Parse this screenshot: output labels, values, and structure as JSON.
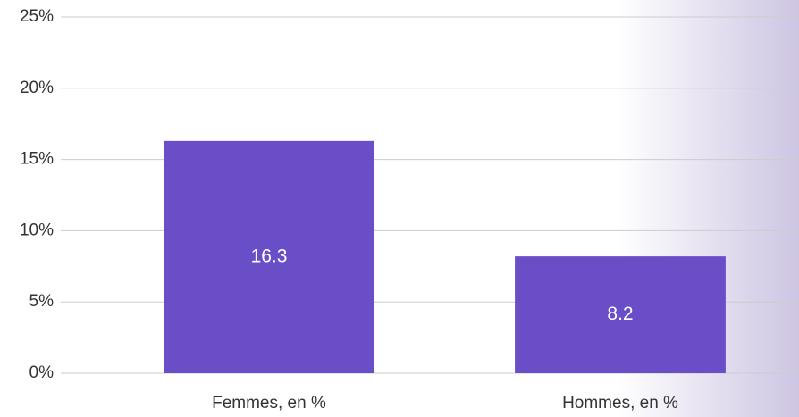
{
  "chart_data": {
    "type": "bar",
    "categories": [
      "Femmes, en %",
      "Hommes, en %"
    ],
    "values": [
      16.3,
      8.2
    ],
    "color": "#6a4ec8",
    "ylim": [
      0,
      25
    ],
    "yticks": [
      {
        "value": 0,
        "label": "0%"
      },
      {
        "value": 5,
        "label": "5%"
      },
      {
        "value": 10,
        "label": "10%"
      },
      {
        "value": 15,
        "label": "15%"
      },
      {
        "value": 20,
        "label": "20%"
      },
      {
        "value": 25,
        "label": "25%"
      }
    ],
    "grid": true
  }
}
